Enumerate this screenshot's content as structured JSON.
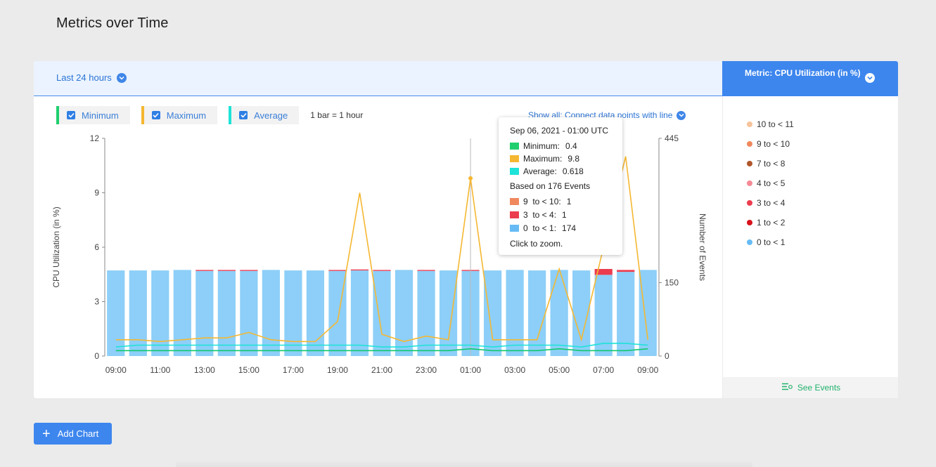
{
  "page": {
    "title": "Metrics over Time"
  },
  "header": {
    "range_label": "Last 24 hours",
    "metric_label": "Metric: CPU Utilization (in %)"
  },
  "legend": {
    "items": [
      {
        "label": "Minimum",
        "color": "#1fcf6e"
      },
      {
        "label": "Maximum",
        "color": "#f5b731"
      },
      {
        "label": "Average",
        "color": "#1de3d8"
      }
    ],
    "bar_note": "1 bar = 1 hour",
    "show_all": "Show all: Connect data points with line"
  },
  "buckets": [
    {
      "label": "10 to < 11",
      "color": "#f7c39a"
    },
    {
      "label": "9 to < 10",
      "color": "#f0885e"
    },
    {
      "label": "7 to < 8",
      "color": "#b0562b"
    },
    {
      "label": "4 to < 5",
      "color": "#f58a95"
    },
    {
      "label": "3 to < 4",
      "color": "#ec3d4f"
    },
    {
      "label": "1 to < 2",
      "color": "#d8121a"
    },
    {
      "label": "0 to < 1",
      "color": "#66bbf5"
    }
  ],
  "see_events": "See Events",
  "add_chart": "Add Chart",
  "tooltip": {
    "title": "Sep 06, 2021 - 01:00 UTC",
    "stats": [
      {
        "label": "Minimum:",
        "value": "0.4",
        "color": "#1fcf6e"
      },
      {
        "label": "Maximum:",
        "value": "9.8",
        "color": "#f5b731"
      },
      {
        "label": "Average:",
        "value": "0.618",
        "color": "#1de3d8"
      }
    ],
    "events_note": "Based on 176 Events",
    "buckets": [
      {
        "label": "9  to < 10:",
        "value": "1",
        "color": "#f0885e"
      },
      {
        "label": "3  to < 4:",
        "value": "1",
        "color": "#ec3d4f"
      },
      {
        "label": "0  to < 1:",
        "value": "174",
        "color": "#66bbf5"
      }
    ],
    "zoom_note": "Click to zoom."
  },
  "chart_data": {
    "type": "bar",
    "ylabel": "CPU Utilization (in %)",
    "y2label": "Number of Events",
    "ylim": [
      0,
      12
    ],
    "y2lim": [
      0,
      445
    ],
    "yticks": [
      "0",
      "3",
      "6",
      "9",
      "12"
    ],
    "y2ticks": [
      "0",
      "150",
      "445"
    ],
    "x_tick_labels": [
      "09:00",
      "11:00",
      "13:00",
      "15:00",
      "17:00",
      "19:00",
      "21:00",
      "23:00",
      "01:00",
      "03:00",
      "05:00",
      "07:00",
      "09:00"
    ],
    "hours": [
      "09:00",
      "10:00",
      "11:00",
      "12:00",
      "13:00",
      "14:00",
      "15:00",
      "16:00",
      "17:00",
      "18:00",
      "19:00",
      "20:00",
      "21:00",
      "22:00",
      "23:00",
      "00:00",
      "01:00",
      "02:00",
      "03:00",
      "04:00",
      "05:00",
      "06:00",
      "07:00",
      "08:00",
      "09:00"
    ],
    "events_0_to_1": [
      175,
      175,
      175,
      176,
      174,
      174,
      174,
      176,
      175,
      175,
      174,
      175,
      174,
      176,
      174,
      175,
      174,
      175,
      176,
      175,
      176,
      175,
      166,
      172,
      176
    ],
    "events_other": [
      0,
      0,
      0,
      0,
      2,
      2,
      2,
      0,
      0,
      0,
      2,
      2,
      2,
      0,
      2,
      0,
      2,
      0,
      0,
      0,
      0,
      0,
      12,
      4,
      0
    ],
    "series": [
      {
        "name": "Maximum",
        "values": [
          0.9,
          0.9,
          0.8,
          0.9,
          1.0,
          1.0,
          1.3,
          0.9,
          0.8,
          0.8,
          1.9,
          9.0,
          1.2,
          0.8,
          1.1,
          0.9,
          9.8,
          0.9,
          0.9,
          0.9,
          4.8,
          0.9,
          6.0,
          11.0,
          0.9
        ]
      },
      {
        "name": "Average",
        "values": [
          0.5,
          0.6,
          0.6,
          0.6,
          0.6,
          0.6,
          0.6,
          0.6,
          0.6,
          0.6,
          0.6,
          0.6,
          0.5,
          0.5,
          0.6,
          0.6,
          0.6,
          0.5,
          0.6,
          0.6,
          0.6,
          0.5,
          0.7,
          0.7,
          0.6
        ]
      },
      {
        "name": "Minimum",
        "values": [
          0.3,
          0.3,
          0.3,
          0.3,
          0.3,
          0.3,
          0.3,
          0.3,
          0.3,
          0.3,
          0.3,
          0.3,
          0.3,
          0.3,
          0.3,
          0.3,
          0.4,
          0.3,
          0.3,
          0.3,
          0.4,
          0.3,
          0.3,
          0.3,
          0.4
        ]
      }
    ]
  }
}
